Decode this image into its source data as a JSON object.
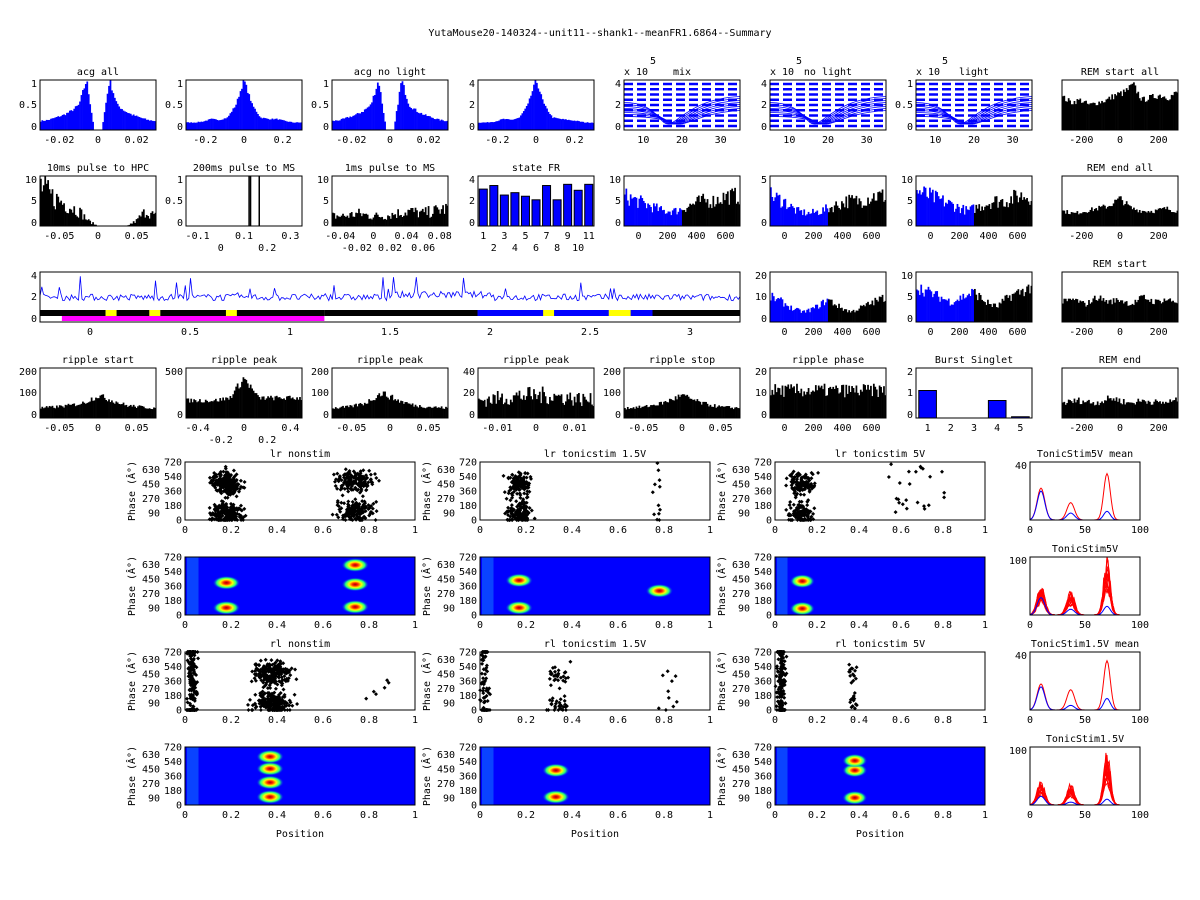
{
  "figure_title": "YutaMouse20-140324--unit11--shank1--meanFR1.6864--Summary",
  "colors": {
    "blue": "#0000ff",
    "black": "#000000",
    "red": "#ff0000",
    "magenta": "#ff00ff",
    "yellow": "#ffff00"
  },
  "chart_data": [
    {
      "title": "acg all",
      "type": "bar",
      "color": "#0000ff",
      "xticks": [
        "-0.02",
        "0",
        "0.02"
      ],
      "yticks": [
        "0",
        "0.5",
        "1"
      ],
      "profile": [
        0.18,
        0.2,
        0.25,
        0.3,
        0.38,
        0.5,
        1.0,
        0,
        0,
        1.0,
        0.5,
        0.38,
        0.3,
        0.25,
        0.2,
        0.18
      ],
      "noise": 0.15
    },
    {
      "title": "",
      "type": "bar",
      "color": "#0000ff",
      "xticks": [
        "-0.2",
        "0",
        "0.2"
      ],
      "yticks": [
        "0",
        "0.5",
        "1"
      ],
      "profile": [
        0.15,
        0.15,
        0.17,
        0.22,
        0.2,
        0.25,
        0.5,
        1.0,
        0.5,
        0.25,
        0.22,
        0.22,
        0.18,
        0.15,
        0.15
      ],
      "noise": 0.1
    },
    {
      "title": "acg no light",
      "type": "bar",
      "color": "#0000ff",
      "xticks": [
        "-0.02",
        "0",
        "0.02"
      ],
      "yticks": [
        "0",
        "0.5",
        "1"
      ],
      "profile": [
        0.18,
        0.2,
        0.25,
        0.3,
        0.38,
        0.5,
        1.0,
        0,
        0,
        1.0,
        0.5,
        0.38,
        0.3,
        0.25,
        0.2,
        0.18
      ],
      "noise": 0.15
    },
    {
      "title": "",
      "type": "bar",
      "color": "#0000ff",
      "xticks": [
        "-0.2",
        "0",
        "0.2"
      ],
      "yticks": [
        "0",
        "2",
        "4"
      ],
      "profile": [
        0.15,
        0.15,
        0.17,
        0.22,
        0.2,
        0.25,
        0.5,
        1.0,
        0.5,
        0.25,
        0.22,
        0.2,
        0.18,
        0.15,
        0.15
      ],
      "noise": 0.1
    },
    {
      "title": "mix",
      "exponent": "x 10",
      "exponent_power": "5",
      "type": "line",
      "color": "#0000ff",
      "xticks": [
        "10",
        "20",
        "30"
      ],
      "yticks": [
        "0",
        "2",
        "4"
      ],
      "dip_center": 16
    },
    {
      "title": "no light",
      "exponent": "x 10",
      "exponent_power": "5",
      "type": "line",
      "color": "#0000ff",
      "xticks": [
        "10",
        "20",
        "30"
      ],
      "yticks": [
        "0",
        "2",
        "4"
      ],
      "dip_center": 16
    },
    {
      "title": "light",
      "exponent": "x 10",
      "exponent_power": "5",
      "type": "line",
      "color": "#0000ff",
      "xticks": [
        "10",
        "20",
        "30"
      ],
      "yticks": [
        "0",
        "0.5",
        "1"
      ],
      "dip_center": 16
    },
    {
      "title": "REM start all",
      "type": "bar",
      "color": "#000000",
      "xticks": [
        "-200",
        "0",
        "200"
      ],
      "yticks": [],
      "profile": [
        0.65,
        0.55,
        0.6,
        0.5,
        0.55,
        0.6,
        0.7,
        0.75,
        0.9,
        0.6,
        0.65,
        0.7,
        0.65,
        0.75
      ],
      "noise": 0.2
    },
    {
      "title": "10ms pulse to HPC",
      "type": "bar",
      "color": "#000000",
      "xticks": [
        "-0.05",
        "0",
        "0.05"
      ],
      "yticks": [
        "0",
        "5",
        "10"
      ],
      "profile": [
        0.8,
        0.6,
        0.5,
        0.4,
        0.3,
        0.1,
        0,
        0,
        0,
        0,
        0.1,
        0.3,
        0.2
      ],
      "noise": 0.9
    },
    {
      "title": "200ms pulse to MS",
      "type": "bar",
      "color": "#000000",
      "xticks": [
        "-0.1",
        "0",
        "0.1",
        "0.2",
        "0.3"
      ],
      "yticks": [
        "0",
        "0.5",
        "1"
      ],
      "spikes": [
        0.55,
        0.63
      ]
    },
    {
      "title": "1ms pulse to MS",
      "type": "bar",
      "color": "#000000",
      "xticks": [
        "-0.04",
        "-0.02",
        "0",
        "0.02",
        "0.04",
        "0.06",
        "0.08"
      ],
      "yticks": [
        "0",
        "5",
        "10"
      ],
      "profile": [
        0.2,
        0.2,
        0.25,
        0.2,
        0.2,
        0.25,
        0.3,
        0.25,
        0.3,
        0.35
      ],
      "noise": 0.9
    },
    {
      "title": "state FR",
      "type": "bars",
      "color": "#0000ff",
      "xticks": [
        "1",
        "2",
        "3",
        "4",
        "5",
        "6",
        "7",
        "8",
        "9",
        "10",
        "11"
      ],
      "yticks": [
        "0",
        "2",
        "4"
      ],
      "values": [
        3.1,
        3.4,
        2.6,
        2.8,
        2.5,
        2.2,
        3.4,
        2.2,
        3.5,
        3.0,
        3.5
      ]
    },
    {
      "title": "",
      "type": "split",
      "color": "#0000ff",
      "xticks": [
        "0",
        "200",
        "400",
        "600"
      ],
      "yticks": [
        "0",
        "5",
        "10"
      ],
      "profile": [
        0.6,
        0.5,
        0.4,
        0.3,
        0.3,
        0.4,
        0.5,
        0.5,
        0.6,
        0.6
      ],
      "noise": 0.6
    },
    {
      "title": "",
      "type": "split",
      "color": "#0000ff",
      "xticks": [
        "0",
        "200",
        "400",
        "600"
      ],
      "yticks": [
        "0",
        "5"
      ],
      "profile": [
        0.6,
        0.5,
        0.3,
        0.25,
        0.3,
        0.4,
        0.5,
        0.5,
        0.6,
        0.6
      ],
      "noise": 0.6
    },
    {
      "title": "",
      "type": "split",
      "color": "#0000ff",
      "xticks": [
        "0",
        "200",
        "400",
        "600"
      ],
      "yticks": [
        "0",
        "5",
        "10"
      ],
      "profile": [
        0.7,
        0.6,
        0.5,
        0.4,
        0.3,
        0.4,
        0.5,
        0.5,
        0.6,
        0.6
      ],
      "noise": 0.6
    },
    {
      "title": "REM end all",
      "type": "bar",
      "color": "#000000",
      "xticks": [
        "-200",
        "0",
        "200"
      ],
      "yticks": [],
      "profile": [
        0.3,
        0.25,
        0.3,
        0.35,
        0.4,
        0.55,
        0.35,
        0.3,
        0.3,
        0.35,
        0.3
      ],
      "noise": 0.3
    },
    {
      "title": "",
      "type": "trace",
      "color": "#0000ff",
      "xticks": [
        "0",
        "0.5",
        "1",
        "1.5",
        "2",
        "2.5",
        "3"
      ],
      "yticks": [
        "0",
        "2",
        "4"
      ],
      "state_segments": [
        {
          "from": 0.0,
          "to": 0.3,
          "color": "#000000"
        },
        {
          "from": 0.3,
          "to": 0.35,
          "color": "#ffff00"
        },
        {
          "from": 0.35,
          "to": 0.5,
          "color": "#000000"
        },
        {
          "from": 0.5,
          "to": 0.55,
          "color": "#ffff00"
        },
        {
          "from": 0.55,
          "to": 1.3,
          "color": "#000000"
        },
        {
          "from": 0.85,
          "to": 0.9,
          "color": "#ffff00"
        },
        {
          "from": 1.3,
          "to": 2.0,
          "color": "#000000"
        },
        {
          "from": 2.0,
          "to": 2.8,
          "color": "#0000ff"
        },
        {
          "from": 2.3,
          "to": 2.35,
          "color": "#ffff00"
        },
        {
          "from": 2.6,
          "to": 2.7,
          "color": "#ffff00"
        },
        {
          "from": 2.8,
          "to": 3.2,
          "color": "#000000"
        }
      ],
      "light_segment": {
        "from": 0.1,
        "to": 1.3,
        "color": "#ff00ff"
      }
    },
    {
      "title": "",
      "type": "split",
      "color": "#0000ff",
      "xticks": [
        "0",
        "200",
        "400",
        "600"
      ],
      "yticks": [
        "0",
        "10",
        "20"
      ],
      "profile": [
        0.5,
        0.4,
        0.25,
        0.2,
        0.3,
        0.45,
        0.3,
        0.2,
        0.3,
        0.4,
        0.5
      ],
      "noise": 0.4
    },
    {
      "title": "",
      "type": "split",
      "color": "#0000ff",
      "xticks": [
        "0",
        "200",
        "400",
        "600"
      ],
      "yticks": [
        "0",
        "5",
        "10"
      ],
      "profile": [
        0.7,
        0.6,
        0.5,
        0.4,
        0.5,
        0.6,
        0.4,
        0.3,
        0.5,
        0.6,
        0.7
      ],
      "noise": 0.4
    },
    {
      "title": "REM start",
      "type": "bar",
      "color": "#000000",
      "xticks": [
        "-200",
        "0",
        "200"
      ],
      "yticks": [],
      "profile": [
        0.4,
        0.45,
        0.35,
        0.5,
        0.4,
        0.45,
        0.35,
        0.5,
        0.4,
        0.45,
        0.4
      ],
      "noise": 0.3
    },
    {
      "title": "ripple start",
      "type": "bar",
      "color": "#000000",
      "xticks": [
        "-0.05",
        "0",
        "0.05"
      ],
      "yticks": [
        "0",
        "100",
        "200"
      ],
      "profile": [
        0.2,
        0.22,
        0.25,
        0.3,
        0.45,
        0.35,
        0.25,
        0.22,
        0.2
      ],
      "noise": 0.3
    },
    {
      "title": "ripple peak",
      "type": "bar",
      "color": "#000000",
      "xticks": [
        "-0.4",
        "-0.2",
        "0",
        "0.2",
        "0.4"
      ],
      "yticks": [
        "0",
        "500"
      ],
      "profile": [
        0.35,
        0.35,
        0.35,
        0.4,
        0.8,
        0.4,
        0.4,
        0.4,
        0.4
      ],
      "noise": 0.25
    },
    {
      "title": "ripple peak",
      "type": "bar",
      "color": "#000000",
      "xticks": [
        "-0.05",
        "0",
        "0.05"
      ],
      "yticks": [
        "0",
        "100",
        "200"
      ],
      "profile": [
        0.2,
        0.22,
        0.3,
        0.5,
        0.35,
        0.25,
        0.22,
        0.2
      ],
      "noise": 0.3
    },
    {
      "title": "ripple peak",
      "type": "bar",
      "color": "#000000",
      "xticks": [
        "-0.01",
        "0",
        "0.01"
      ],
      "yticks": [
        "0",
        "20",
        "40"
      ],
      "profile": [
        0.35,
        0.4,
        0.45,
        0.45,
        0.4,
        0.35
      ],
      "noise": 0.8
    },
    {
      "title": "ripple stop",
      "type": "bar",
      "color": "#000000",
      "xticks": [
        "-0.05",
        "0",
        "0.05"
      ],
      "yticks": [
        "0",
        "100",
        "200"
      ],
      "profile": [
        0.2,
        0.22,
        0.3,
        0.45,
        0.3,
        0.22,
        0.2
      ],
      "noise": 0.3
    },
    {
      "title": "ripple phase",
      "type": "bar",
      "color": "#000000",
      "xticks": [
        "0",
        "200",
        "400",
        "600"
      ],
      "yticks": [
        "0",
        "10",
        "20"
      ],
      "profile": [
        0.55,
        0.55,
        0.55,
        0.55,
        0.55
      ],
      "noise": 0.5
    },
    {
      "title": "Burst Singlet",
      "type": "bars",
      "color": "#0000ff",
      "xticks": [
        "1",
        "2",
        "3",
        "4",
        "5"
      ],
      "yticks": [
        "0",
        "1",
        "2"
      ],
      "values": [
        1.1,
        0,
        0,
        0.7,
        0.05
      ],
      "ymax": 2
    },
    {
      "title": "REM end",
      "type": "bar",
      "color": "#000000",
      "xticks": [
        "-200",
        "0",
        "200"
      ],
      "yticks": [],
      "profile": [
        0.3,
        0.35,
        0.3,
        0.4,
        0.3,
        0.35,
        0.3,
        0.35
      ],
      "noise": 0.4
    }
  ],
  "phase_panels": [
    {
      "title": "lr nonstim",
      "type": "scatter",
      "clusters": [
        {
          "x": 0.18,
          "phase": 90,
          "n": 200,
          "sx": 0.03
        },
        {
          "x": 0.18,
          "phase": 450,
          "n": 200,
          "sx": 0.03
        },
        {
          "x": 0.74,
          "phase": 120,
          "n": 160,
          "sx": 0.04
        },
        {
          "x": 0.74,
          "phase": 480,
          "n": 160,
          "sx": 0.04
        }
      ]
    },
    {
      "title": "lr tonicstim 1.5V",
      "type": "scatter",
      "clusters": [
        {
          "x": 0.17,
          "phase": 90,
          "n": 140,
          "sx": 0.025
        },
        {
          "x": 0.17,
          "phase": 450,
          "n": 140,
          "sx": 0.025
        },
        {
          "x": 0.77,
          "phase": 150,
          "n": 6,
          "sx": 0.01
        },
        {
          "x": 0.77,
          "phase": 510,
          "n": 6,
          "sx": 0.01
        }
      ]
    },
    {
      "title": "lr tonicstim 5V",
      "type": "scatter",
      "clusters": [
        {
          "x": 0.13,
          "phase": 90,
          "n": 120,
          "sx": 0.03
        },
        {
          "x": 0.13,
          "phase": 450,
          "n": 120,
          "sx": 0.03
        },
        {
          "x": 0.65,
          "phase": 200,
          "n": 12,
          "sx": 0.1
        },
        {
          "x": 0.65,
          "phase": 560,
          "n": 12,
          "sx": 0.1
        }
      ]
    },
    {
      "title": "TonicStim5V mean",
      "type": "redlines",
      "peaks": [
        {
          "x": 10,
          "h": 0.55,
          "blue": 0.5
        },
        {
          "x": 37,
          "h": 0.3,
          "blue": 0.12
        },
        {
          "x": 70,
          "h": 0.8,
          "blue": 0.15
        }
      ]
    },
    {
      "title": "",
      "type": "heatmap",
      "clusters": [
        {
          "x": 0.18,
          "phase": 90
        },
        {
          "x": 0.18,
          "phase": 400
        },
        {
          "x": 0.74,
          "phase": 100
        },
        {
          "x": 0.74,
          "phase": 380
        },
        {
          "x": 0.74,
          "phase": 620
        }
      ]
    },
    {
      "title": "",
      "type": "heatmap",
      "clusters": [
        {
          "x": 0.17,
          "phase": 90
        },
        {
          "x": 0.17,
          "phase": 430
        },
        {
          "x": 0.78,
          "phase": 300
        }
      ]
    },
    {
      "title": "",
      "type": "heatmap",
      "clusters": [
        {
          "x": 0.13,
          "phase": 80
        },
        {
          "x": 0.13,
          "phase": 420
        }
      ]
    },
    {
      "title": "TonicStim5V",
      "type": "redlines",
      "multi": true,
      "peaks": [
        {
          "x": 10,
          "h": 0.45,
          "blue": 0.3
        },
        {
          "x": 37,
          "h": 0.35,
          "blue": 0.1
        },
        {
          "x": 70,
          "h": 0.85,
          "blue": 0.15
        }
      ]
    },
    {
      "title": "rl nonstim",
      "type": "scatter",
      "clusters": [
        {
          "x": 0.03,
          "phase": 360,
          "n": 200,
          "sx": 0.01,
          "sp": 360
        },
        {
          "x": 0.38,
          "phase": 90,
          "n": 220,
          "sx": 0.04
        },
        {
          "x": 0.38,
          "phase": 450,
          "n": 220,
          "sx": 0.04
        },
        {
          "x": 0.85,
          "phase": 300,
          "n": 6,
          "sx": 0.05
        }
      ]
    },
    {
      "title": "rl tonicstim 1.5V",
      "type": "scatter",
      "clusters": [
        {
          "x": 0.02,
          "phase": 360,
          "n": 80,
          "sx": 0.01,
          "sp": 360
        },
        {
          "x": 0.34,
          "phase": 90,
          "n": 30,
          "sx": 0.02
        },
        {
          "x": 0.34,
          "phase": 450,
          "n": 30,
          "sx": 0.02
        },
        {
          "x": 0.82,
          "phase": 300,
          "n": 10,
          "sx": 0.03,
          "sp": 200
        }
      ]
    },
    {
      "title": "rl tonicstim 5V",
      "type": "scatter",
      "clusters": [
        {
          "x": 0.03,
          "phase": 360,
          "n": 200,
          "sx": 0.01,
          "sp": 360
        },
        {
          "x": 0.37,
          "phase": 120,
          "n": 14,
          "sx": 0.01
        },
        {
          "x": 0.37,
          "phase": 480,
          "n": 14,
          "sx": 0.01
        }
      ]
    },
    {
      "title": "TonicStim1.5V mean",
      "type": "redlines",
      "peaks": [
        {
          "x": 10,
          "h": 0.45,
          "blue": 0.4
        },
        {
          "x": 37,
          "h": 0.35,
          "blue": 0.08
        },
        {
          "x": 70,
          "h": 0.85,
          "blue": 0.2
        }
      ]
    },
    {
      "title": "",
      "type": "heatmap",
      "clusters": [
        {
          "x": 0.37,
          "phase": 100
        },
        {
          "x": 0.37,
          "phase": 280
        },
        {
          "x": 0.37,
          "phase": 450
        },
        {
          "x": 0.37,
          "phase": 600
        }
      ],
      "edge": 0.02
    },
    {
      "title": "",
      "type": "heatmap",
      "clusters": [
        {
          "x": 0.33,
          "phase": 100
        },
        {
          "x": 0.33,
          "phase": 430
        }
      ],
      "edge": 0.0
    },
    {
      "title": "",
      "type": "heatmap",
      "clusters": [
        {
          "x": 0.38,
          "phase": 90
        },
        {
          "x": 0.38,
          "phase": 430
        },
        {
          "x": 0.38,
          "phase": 550
        }
      ],
      "edge": 0.04
    },
    {
      "title": "TonicStim1.5V",
      "type": "redlines",
      "multi": true,
      "peaks": [
        {
          "x": 10,
          "h": 0.35,
          "blue": 0.15
        },
        {
          "x": 37,
          "h": 0.3,
          "blue": 0.05
        },
        {
          "x": 70,
          "h": 0.8,
          "blue": 0.1
        }
      ]
    }
  ],
  "phase_axis": {
    "ylabel": "Phase (Â°)",
    "yticks": [
      "0",
      "90",
      "180",
      "270",
      "360",
      "450",
      "540",
      "630",
      "720"
    ],
    "xticks": [
      "0",
      "0.2",
      "0.4",
      "0.6",
      "0.8",
      "1"
    ],
    "xlabel": "Position"
  },
  "side_axis": {
    "xticks": [
      "0",
      "50",
      "100"
    ],
    "ytop": "40",
    "ytop_heat": "100"
  }
}
